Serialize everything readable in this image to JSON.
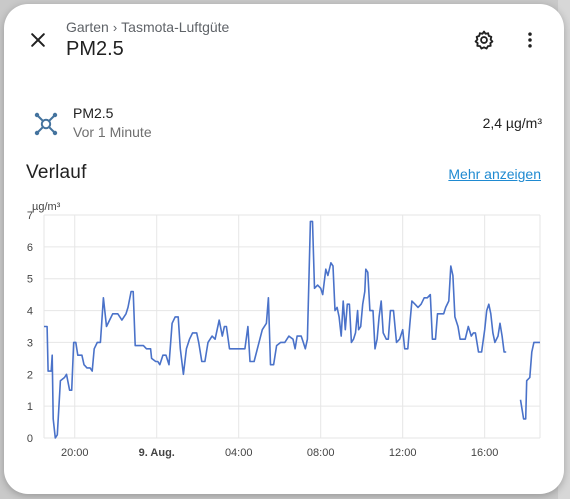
{
  "dialog": {
    "breadcrumb": {
      "area": "Garten",
      "device": "Tasmota-Luftgüte"
    },
    "title": "PM2.5",
    "icons": {
      "close": "close-icon",
      "settings": "gear-icon",
      "more": "more-vertical-icon"
    }
  },
  "entity": {
    "name": "PM2.5",
    "last_changed": "Vor 1 Minute",
    "value": "2,4 µg/m³",
    "icon": "molecule-icon",
    "icon_color": "#44739e"
  },
  "history": {
    "title": "Verlauf",
    "more_link": "Mehr anzeigen"
  },
  "chart_data": {
    "type": "line",
    "ylabel": "µg/m³",
    "ylim": [
      0,
      7
    ],
    "yticks": [
      0,
      1,
      2,
      3,
      4,
      5,
      6,
      7
    ],
    "xlim": [
      18.5,
      42.7
    ],
    "xticks": [
      {
        "t": 20,
        "label": "20:00",
        "bold": false
      },
      {
        "t": 24,
        "label": "9. Aug.",
        "bold": true
      },
      {
        "t": 28,
        "label": "04:00",
        "bold": false
      },
      {
        "t": 32,
        "label": "08:00",
        "bold": false
      },
      {
        "t": 36,
        "label": "12:00",
        "bold": false
      },
      {
        "t": 40,
        "label": "16:00",
        "bold": false
      }
    ],
    "line_color": "#4a72c9",
    "grid": true,
    "series": [
      {
        "points": [
          [
            18.5,
            3.5
          ],
          [
            18.65,
            3.5
          ],
          [
            18.7,
            2.1
          ],
          [
            18.85,
            2.1
          ],
          [
            18.9,
            2.6
          ],
          [
            18.95,
            0.6
          ],
          [
            19.05,
            0.0
          ],
          [
            19.15,
            0.1
          ],
          [
            19.3,
            1.8
          ],
          [
            19.5,
            1.9
          ],
          [
            19.6,
            2.0
          ],
          [
            19.75,
            1.5
          ],
          [
            19.85,
            1.5
          ],
          [
            19.95,
            3.0
          ],
          [
            20.05,
            3.0
          ],
          [
            20.15,
            2.6
          ],
          [
            20.35,
            2.6
          ],
          [
            20.45,
            2.3
          ],
          [
            20.6,
            2.2
          ],
          [
            20.75,
            2.2
          ],
          [
            20.85,
            2.1
          ],
          [
            20.95,
            2.8
          ],
          [
            21.1,
            3.0
          ],
          [
            21.25,
            3.0
          ],
          [
            21.4,
            4.4
          ],
          [
            21.55,
            3.5
          ],
          [
            21.7,
            3.7
          ],
          [
            21.85,
            3.9
          ],
          [
            22.1,
            3.9
          ],
          [
            22.3,
            3.7
          ],
          [
            22.5,
            3.9
          ],
          [
            22.6,
            4.1
          ],
          [
            22.75,
            4.6
          ],
          [
            22.85,
            4.6
          ],
          [
            22.95,
            2.9
          ],
          [
            23.15,
            2.9
          ],
          [
            23.35,
            2.9
          ],
          [
            23.5,
            2.8
          ],
          [
            23.7,
            2.8
          ],
          [
            23.75,
            2.5
          ],
          [
            23.95,
            2.4
          ],
          [
            24.05,
            2.4
          ],
          [
            24.15,
            2.3
          ],
          [
            24.3,
            2.6
          ],
          [
            24.45,
            2.6
          ],
          [
            24.6,
            2.3
          ],
          [
            24.75,
            3.6
          ],
          [
            24.9,
            3.8
          ],
          [
            25.05,
            3.8
          ],
          [
            25.15,
            2.8
          ],
          [
            25.3,
            2.0
          ],
          [
            25.45,
            2.8
          ],
          [
            25.6,
            3.1
          ],
          [
            25.75,
            3.3
          ],
          [
            25.95,
            3.3
          ],
          [
            26.05,
            3.0
          ],
          [
            26.2,
            2.4
          ],
          [
            26.35,
            2.4
          ],
          [
            26.5,
            3.0
          ],
          [
            26.7,
            3.2
          ],
          [
            26.85,
            3.1
          ],
          [
            27.05,
            3.7
          ],
          [
            27.2,
            3.2
          ],
          [
            27.3,
            3.5
          ],
          [
            27.4,
            3.5
          ],
          [
            27.55,
            2.8
          ],
          [
            27.75,
            2.8
          ],
          [
            27.9,
            2.8
          ],
          [
            28.05,
            2.8
          ],
          [
            28.3,
            2.8
          ],
          [
            28.45,
            3.5
          ],
          [
            28.55,
            2.4
          ],
          [
            28.75,
            2.4
          ],
          [
            28.95,
            2.9
          ],
          [
            29.15,
            3.4
          ],
          [
            29.35,
            3.6
          ],
          [
            29.45,
            4.4
          ],
          [
            29.55,
            2.3
          ],
          [
            29.7,
            2.3
          ],
          [
            29.85,
            2.9
          ],
          [
            30.05,
            3.0
          ],
          [
            30.25,
            3.0
          ],
          [
            30.45,
            3.2
          ],
          [
            30.65,
            3.1
          ],
          [
            30.75,
            2.8
          ],
          [
            30.85,
            3.2
          ],
          [
            31.05,
            3.2
          ],
          [
            31.15,
            3.0
          ],
          [
            31.25,
            2.8
          ],
          [
            31.35,
            3.1
          ],
          [
            31.5,
            6.8
          ],
          [
            31.6,
            6.8
          ],
          [
            31.7,
            4.7
          ],
          [
            31.85,
            4.8
          ],
          [
            32.0,
            4.7
          ],
          [
            32.1,
            4.5
          ],
          [
            32.25,
            5.3
          ],
          [
            32.35,
            5.1
          ],
          [
            32.5,
            5.5
          ],
          [
            32.6,
            5.4
          ],
          [
            32.7,
            4.0
          ],
          [
            32.8,
            4.1
          ],
          [
            32.9,
            3.8
          ],
          [
            33.0,
            3.2
          ],
          [
            33.1,
            4.3
          ],
          [
            33.2,
            3.4
          ],
          [
            33.3,
            4.2
          ],
          [
            33.4,
            4.2
          ],
          [
            33.5,
            3.0
          ],
          [
            33.6,
            3.1
          ],
          [
            33.7,
            3.3
          ],
          [
            33.8,
            4.0
          ],
          [
            33.85,
            3.4
          ],
          [
            33.95,
            3.5
          ],
          [
            34.05,
            4.2
          ],
          [
            34.15,
            4.6
          ],
          [
            34.2,
            5.3
          ],
          [
            34.3,
            5.2
          ],
          [
            34.4,
            4.0
          ],
          [
            34.55,
            4.0
          ],
          [
            34.65,
            2.8
          ],
          [
            34.75,
            3.1
          ],
          [
            34.85,
            3.8
          ],
          [
            34.95,
            4.3
          ],
          [
            35.05,
            3.3
          ],
          [
            35.2,
            3.1
          ],
          [
            35.3,
            3.1
          ],
          [
            35.4,
            4.0
          ],
          [
            35.55,
            4.0
          ],
          [
            35.7,
            3.0
          ],
          [
            35.85,
            3.1
          ],
          [
            36.0,
            3.4
          ],
          [
            36.1,
            2.8
          ],
          [
            36.25,
            2.8
          ],
          [
            36.35,
            3.6
          ],
          [
            36.45,
            4.3
          ],
          [
            36.6,
            4.2
          ],
          [
            36.75,
            4.1
          ],
          [
            36.9,
            4.2
          ],
          [
            37.05,
            4.4
          ],
          [
            37.2,
            4.4
          ],
          [
            37.35,
            4.5
          ],
          [
            37.45,
            3.1
          ],
          [
            37.6,
            3.1
          ],
          [
            37.7,
            3.9
          ],
          [
            37.85,
            3.9
          ],
          [
            38.0,
            3.9
          ],
          [
            38.1,
            4.1
          ],
          [
            38.25,
            4.3
          ],
          [
            38.35,
            5.4
          ],
          [
            38.45,
            5.1
          ],
          [
            38.55,
            3.8
          ],
          [
            38.7,
            3.5
          ],
          [
            38.8,
            3.1
          ],
          [
            38.95,
            3.1
          ],
          [
            39.05,
            3.1
          ],
          [
            39.2,
            3.5
          ],
          [
            39.35,
            3.2
          ],
          [
            39.45,
            3.3
          ],
          [
            39.55,
            3.3
          ],
          [
            39.7,
            2.7
          ],
          [
            39.85,
            2.7
          ],
          [
            40.0,
            3.4
          ],
          [
            40.1,
            4.0
          ],
          [
            40.2,
            4.2
          ],
          [
            40.3,
            3.9
          ],
          [
            40.4,
            3.3
          ],
          [
            40.5,
            3.0
          ],
          [
            40.65,
            3.2
          ],
          [
            40.75,
            3.6
          ],
          [
            40.85,
            3.2
          ],
          [
            40.95,
            2.7
          ],
          [
            41.05,
            2.7
          ]
        ]
      },
      {
        "points": [
          [
            41.75,
            1.2
          ],
          [
            41.9,
            0.6
          ],
          [
            42.0,
            0.6
          ],
          [
            42.05,
            1.8
          ],
          [
            42.2,
            1.9
          ],
          [
            42.3,
            2.7
          ],
          [
            42.4,
            3.0
          ],
          [
            42.7,
            3.0
          ]
        ]
      }
    ]
  }
}
